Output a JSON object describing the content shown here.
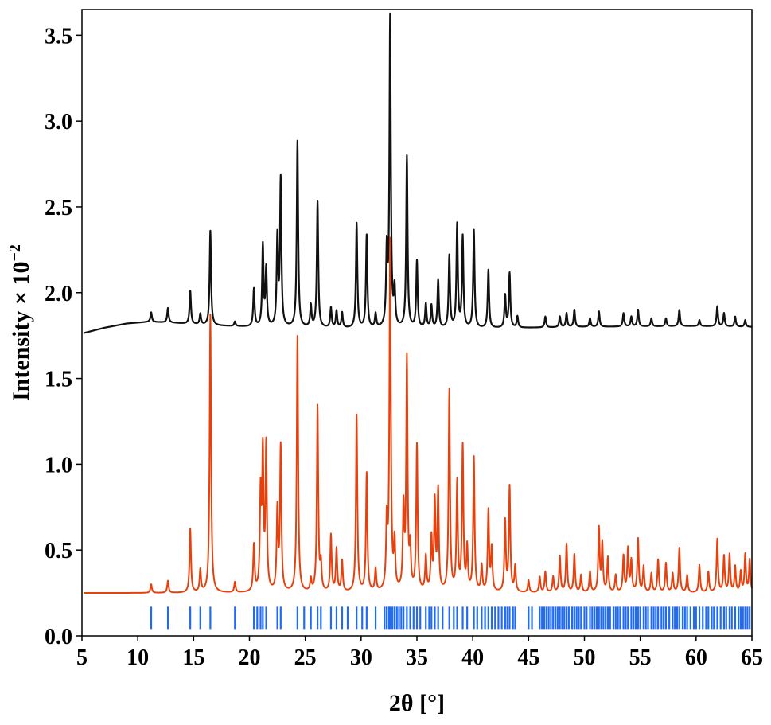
{
  "chart_data": {
    "type": "line",
    "title": "",
    "xlabel": "2θ [°]",
    "ylabel": "Intensity × 10",
    "ylabel_exponent": "−2",
    "xlim": [
      5,
      65
    ],
    "ylim": [
      0,
      3.65
    ],
    "x_ticks": [
      5,
      10,
      15,
      20,
      25,
      30,
      35,
      40,
      45,
      50,
      55,
      60,
      65
    ],
    "x_tick_labels": [
      "5",
      "10",
      "15",
      "20",
      "25",
      "30",
      "35",
      "40",
      "45",
      "50",
      "55",
      "60",
      "65"
    ],
    "y_ticks": [
      0,
      0.5,
      1,
      1.5,
      2,
      2.5,
      3,
      3.5
    ],
    "y_tick_labels": [
      "0.0",
      "0.5",
      "1.0",
      "1.5",
      "2.0",
      "2.5",
      "3.0",
      "3.5"
    ],
    "grid": false,
    "series": [
      {
        "color": "#111111",
        "kind": "profile",
        "baseline": [
          [
            5.2,
            1.765
          ],
          [
            7,
            1.795
          ],
          [
            9,
            1.82
          ],
          [
            11,
            1.83
          ],
          [
            13,
            1.825
          ],
          [
            16,
            1.81
          ],
          [
            20,
            1.8
          ],
          [
            30,
            1.79
          ],
          [
            40,
            1.79
          ],
          [
            50,
            1.8
          ],
          [
            60,
            1.805
          ],
          [
            65,
            1.8
          ]
        ],
        "peaks": [
          [
            11.2,
            1.885
          ],
          [
            12.7,
            1.91
          ],
          [
            14.7,
            2.01
          ],
          [
            15.6,
            1.875
          ],
          [
            16.5,
            2.36
          ],
          [
            18.7,
            1.83
          ],
          [
            20.4,
            2.02
          ],
          [
            21.2,
            2.27
          ],
          [
            21.5,
            2.13
          ],
          [
            22.5,
            2.31
          ],
          [
            22.8,
            2.65
          ],
          [
            24.3,
            2.88
          ],
          [
            25.5,
            1.92
          ],
          [
            26.1,
            2.53
          ],
          [
            27.3,
            1.91
          ],
          [
            27.8,
            1.89
          ],
          [
            28.3,
            1.88
          ],
          [
            29.6,
            2.4
          ],
          [
            30.5,
            2.33
          ],
          [
            31.3,
            1.87
          ],
          [
            32.3,
            2.22
          ],
          [
            32.6,
            3.59
          ],
          [
            33.0,
            2.0
          ],
          [
            34.1,
            2.79
          ],
          [
            35.0,
            2.18
          ],
          [
            35.8,
            1.93
          ],
          [
            36.3,
            1.92
          ],
          [
            36.9,
            2.07
          ],
          [
            37.9,
            2.21
          ],
          [
            38.6,
            2.39
          ],
          [
            39.1,
            2.32
          ],
          [
            40.1,
            2.36
          ],
          [
            41.4,
            2.13
          ],
          [
            42.9,
            1.98
          ],
          [
            43.3,
            2.11
          ],
          [
            44.0,
            1.86
          ],
          [
            46.5,
            1.86
          ],
          [
            47.8,
            1.86
          ],
          [
            48.4,
            1.88
          ],
          [
            49.1,
            1.9
          ],
          [
            50.5,
            1.85
          ],
          [
            51.3,
            1.89
          ],
          [
            53.5,
            1.88
          ],
          [
            54.2,
            1.86
          ],
          [
            54.8,
            1.9
          ],
          [
            56.0,
            1.85
          ],
          [
            57.3,
            1.85
          ],
          [
            58.5,
            1.9
          ],
          [
            60.3,
            1.84
          ],
          [
            61.9,
            1.92
          ],
          [
            62.5,
            1.88
          ],
          [
            63.5,
            1.86
          ],
          [
            64.4,
            1.84
          ]
        ]
      },
      {
        "color": "#e8400c",
        "kind": "profile",
        "baseline": [
          [
            5.2,
            0.25
          ],
          [
            65,
            0.25
          ]
        ],
        "peaks": [
          [
            11.2,
            0.3
          ],
          [
            12.7,
            0.32
          ],
          [
            14.7,
            0.62
          ],
          [
            15.6,
            0.38
          ],
          [
            16.5,
            1.87
          ],
          [
            18.7,
            0.31
          ],
          [
            20.4,
            0.52
          ],
          [
            21.0,
            0.8
          ],
          [
            21.2,
            1.03
          ],
          [
            21.5,
            1.09
          ],
          [
            22.5,
            0.72
          ],
          [
            22.8,
            1.09
          ],
          [
            24.3,
            1.74
          ],
          [
            25.5,
            0.32
          ],
          [
            26.1,
            1.33
          ],
          [
            26.4,
            0.4
          ],
          [
            27.3,
            0.58
          ],
          [
            27.8,
            0.5
          ],
          [
            28.3,
            0.43
          ],
          [
            29.6,
            1.28
          ],
          [
            30.5,
            0.94
          ],
          [
            31.3,
            0.38
          ],
          [
            32.3,
            0.63
          ],
          [
            32.6,
            2.28
          ],
          [
            33.0,
            0.52
          ],
          [
            33.8,
            0.72
          ],
          [
            34.1,
            1.59
          ],
          [
            34.4,
            0.48
          ],
          [
            35.0,
            1.1
          ],
          [
            35.8,
            0.45
          ],
          [
            36.3,
            0.55
          ],
          [
            36.6,
            0.76
          ],
          [
            36.9,
            0.83
          ],
          [
            37.9,
            1.42
          ],
          [
            38.6,
            0.88
          ],
          [
            39.1,
            1.09
          ],
          [
            39.5,
            0.5
          ],
          [
            40.1,
            1.03
          ],
          [
            40.8,
            0.4
          ],
          [
            41.4,
            0.72
          ],
          [
            41.7,
            0.5
          ],
          [
            42.9,
            0.66
          ],
          [
            43.3,
            0.86
          ],
          [
            43.8,
            0.4
          ],
          [
            45.0,
            0.32
          ],
          [
            46.0,
            0.34
          ],
          [
            46.5,
            0.37
          ],
          [
            47.2,
            0.34
          ],
          [
            47.8,
            0.46
          ],
          [
            48.4,
            0.53
          ],
          [
            49.1,
            0.47
          ],
          [
            49.7,
            0.35
          ],
          [
            50.5,
            0.37
          ],
          [
            51.3,
            0.62
          ],
          [
            51.6,
            0.53
          ],
          [
            52.1,
            0.45
          ],
          [
            52.8,
            0.35
          ],
          [
            53.5,
            0.46
          ],
          [
            53.9,
            0.5
          ],
          [
            54.2,
            0.43
          ],
          [
            54.8,
            0.56
          ],
          [
            55.3,
            0.4
          ],
          [
            56.0,
            0.36
          ],
          [
            56.6,
            0.44
          ],
          [
            57.3,
            0.42
          ],
          [
            57.9,
            0.36
          ],
          [
            58.5,
            0.51
          ],
          [
            59.2,
            0.35
          ],
          [
            60.3,
            0.41
          ],
          [
            61.1,
            0.37
          ],
          [
            61.9,
            0.56
          ],
          [
            62.5,
            0.46
          ],
          [
            63.0,
            0.47
          ],
          [
            63.5,
            0.4
          ],
          [
            64.0,
            0.37
          ],
          [
            64.4,
            0.47
          ],
          [
            64.8,
            0.44
          ]
        ]
      }
    ],
    "reflection_ticks": {
      "color": "#1f6bf5",
      "y_range": [
        0.04,
        0.17
      ],
      "positions": [
        11.2,
        12.7,
        14.7,
        15.6,
        16.5,
        18.7,
        20.4,
        20.7,
        21.0,
        21.2,
        21.5,
        22.5,
        22.8,
        24.3,
        24.9,
        25.5,
        26.1,
        26.4,
        27.3,
        27.8,
        28.3,
        28.8,
        29.6,
        30.1,
        30.5,
        31.3,
        32.1,
        32.3,
        32.5,
        32.6,
        32.8,
        33.0,
        33.2,
        33.4,
        33.6,
        33.8,
        34.1,
        34.4,
        34.7,
        35.0,
        35.3,
        35.8,
        36.1,
        36.3,
        36.6,
        36.9,
        37.3,
        37.9,
        38.3,
        38.6,
        39.1,
        39.5,
        40.1,
        40.4,
        40.8,
        41.1,
        41.4,
        41.7,
        42.0,
        42.3,
        42.6,
        42.9,
        43.1,
        43.3,
        43.6,
        43.8,
        45.0,
        45.3,
        46.0,
        46.2,
        46.4,
        46.6,
        46.8,
        47.0,
        47.2,
        47.4,
        47.6,
        47.8,
        48.0,
        48.2,
        48.4,
        48.6,
        48.9,
        49.1,
        49.3,
        49.5,
        49.7,
        50.0,
        50.2,
        50.5,
        50.7,
        50.9,
        51.1,
        51.3,
        51.5,
        51.7,
        51.9,
        52.1,
        52.3,
        52.6,
        52.8,
        53.0,
        53.2,
        53.5,
        53.7,
        53.9,
        54.2,
        54.4,
        54.6,
        54.8,
        55.0,
        55.3,
        55.5,
        55.7,
        56.0,
        56.2,
        56.4,
        56.6,
        56.9,
        57.1,
        57.3,
        57.6,
        57.9,
        58.1,
        58.3,
        58.5,
        58.8,
        59.0,
        59.2,
        59.5,
        59.8,
        60.0,
        60.3,
        60.6,
        60.9,
        61.1,
        61.4,
        61.6,
        61.9,
        62.2,
        62.5,
        62.7,
        63.0,
        63.2,
        63.5,
        63.8,
        64.0,
        64.2,
        64.4,
        64.6,
        64.8
      ]
    },
    "axis_color": "#000000"
  }
}
